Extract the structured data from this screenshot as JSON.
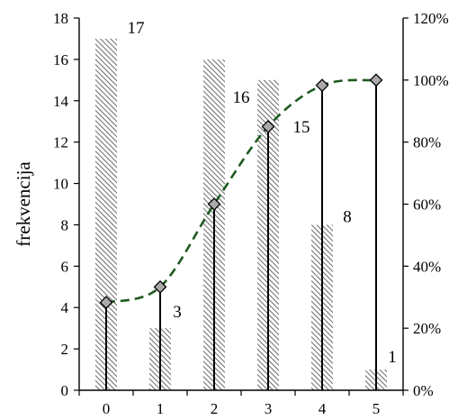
{
  "chart_data": {
    "type": "bar",
    "title": "",
    "xlabel": "",
    "ylabel": "frekvencija",
    "y2label": "",
    "categories": [
      "0",
      "1",
      "2",
      "3",
      "4",
      "5"
    ],
    "ylim": [
      0,
      18
    ],
    "yticks": [
      0,
      2,
      4,
      6,
      8,
      10,
      12,
      14,
      16,
      18
    ],
    "y2lim": [
      0,
      120
    ],
    "y2ticks": [
      "0%",
      "20%",
      "40%",
      "60%",
      "80%",
      "100%",
      "120%"
    ],
    "y2tick_values": [
      0,
      20,
      40,
      60,
      80,
      100,
      120
    ],
    "grid": false,
    "legend": "none",
    "series": [
      {
        "type": "bar",
        "axis": "left",
        "values": [
          17,
          3,
          16,
          15,
          8,
          1
        ],
        "labels": [
          "17",
          "3",
          "16",
          "15",
          "8",
          "1"
        ],
        "pattern": "diagonal-hatch",
        "color": "#555555"
      },
      {
        "type": "line",
        "axis": "right",
        "values": [
          28.3,
          33.3,
          60.0,
          85.0,
          98.3,
          100.0
        ],
        "line_style": "dashed",
        "marker": "diamond",
        "color": "#1e5a1e",
        "drop_lines": true
      }
    ]
  }
}
